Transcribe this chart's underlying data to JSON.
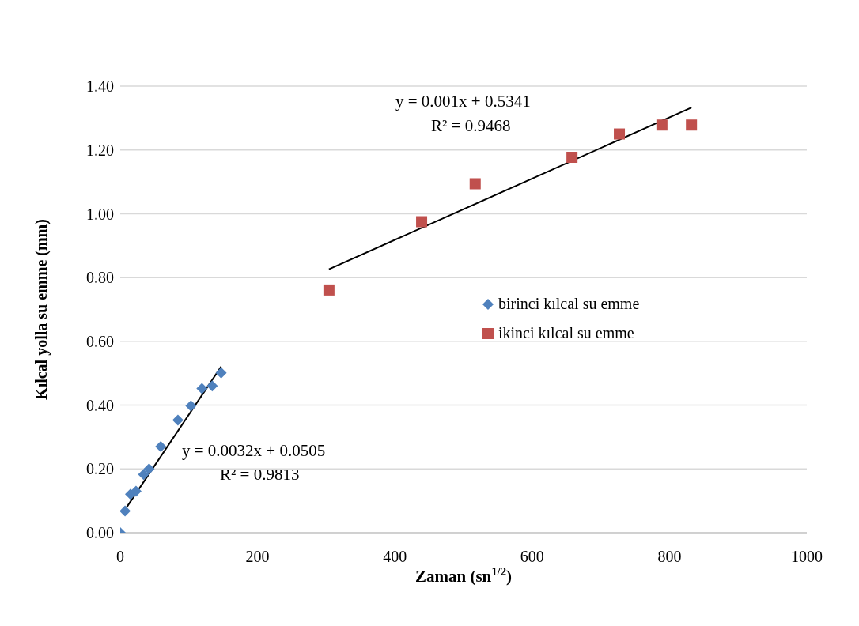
{
  "chart_data": {
    "type": "scatter",
    "xlabel": "Zaman (sn$^{1/2}$)",
    "ylabel": "Kılcal yolla su emme (mm)",
    "xlim": [
      0,
      1000
    ],
    "xticks": [
      0,
      200,
      400,
      600,
      800,
      1000
    ],
    "ylim": [
      0,
      1.4
    ],
    "yticks": [
      {
        "value": 0,
        "label": "0.00"
      },
      {
        "value": 0.2,
        "label": "0.20"
      },
      {
        "value": 0.4,
        "label": "0.40"
      },
      {
        "value": 0.6,
        "label": "0.60"
      },
      {
        "value": 0.8,
        "label": "0.80"
      },
      {
        "value": 1,
        "label": "1.00"
      },
      {
        "value": 1.2,
        "label": "1.20"
      },
      {
        "value": 1.4,
        "label": "1.40"
      }
    ],
    "grid": "y",
    "legend": "right",
    "series": [
      {
        "name": "birinci kılcal su emme",
        "color": "#4f81bd",
        "marker": "diamond",
        "x": [
          0,
          7,
          15,
          23,
          34,
          42,
          59,
          84,
          103,
          119,
          134,
          147
        ],
        "values": [
          0,
          0.068,
          0.121,
          0.13,
          0.183,
          0.2,
          0.27,
          0.353,
          0.398,
          0.452,
          0.46,
          0.501
        ]
      },
      {
        "name": "ikinci kılcal su emme",
        "color": "#c0504d",
        "marker": "square",
        "x": [
          304,
          439,
          517,
          658,
          727,
          789,
          832
        ],
        "values": [
          0.761,
          0.975,
          1.094,
          1.177,
          1.25,
          1.278,
          1.278
        ]
      },
      {
        "type": "line",
        "color": "#000000",
        "marker": "none",
        "x": [
          5,
          147
        ],
        "values": [
          0.066,
          0.521
        ]
      },
      {
        "type": "line",
        "color": "#000000",
        "marker": "none",
        "x": [
          304,
          832
        ],
        "values": [
          0.826,
          1.333
        ]
      }
    ],
    "annotations": [
      "y = 0.0032x + 0.0505",
      "R² = 0.9813",
      "y = 0.001x + 0.5341",
      "R² = 0.9468"
    ]
  }
}
